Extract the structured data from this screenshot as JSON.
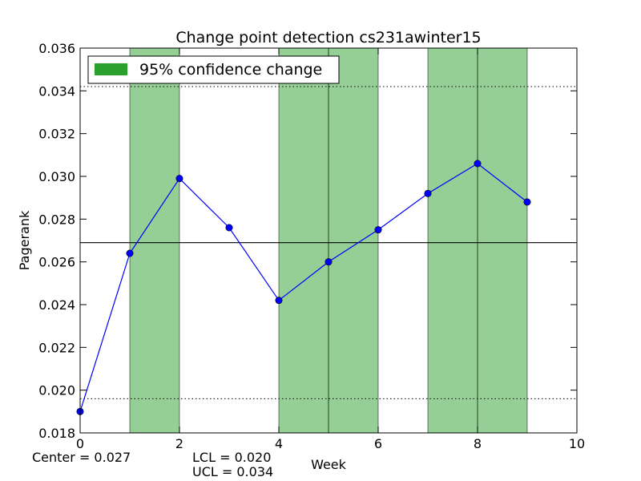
{
  "chart_data": {
    "type": "line",
    "title": "Change point detection cs231awinter15",
    "xlabel": "Week",
    "ylabel": "Pagerank",
    "xlim": [
      0,
      10
    ],
    "ylim": [
      0.018,
      0.036
    ],
    "x_ticks": [
      "0",
      "2",
      "4",
      "6",
      "8",
      "10"
    ],
    "y_ticks": [
      "0.018",
      "0.020",
      "0.022",
      "0.024",
      "0.026",
      "0.028",
      "0.030",
      "0.032",
      "0.034",
      "0.036"
    ],
    "grid": false,
    "series": [
      {
        "x": [
          0,
          1,
          2,
          3,
          4,
          5,
          6,
          7,
          8,
          9
        ],
        "values": [
          0.019,
          0.0264,
          0.0299,
          0.0276,
          0.0242,
          0.026,
          0.0275,
          0.0292,
          0.0306,
          0.0288
        ],
        "color": "#0000ff"
      }
    ],
    "center_line": 0.0269,
    "lcl_line": 0.0196,
    "ucl_line": 0.0342,
    "change_regions": [
      [
        1,
        2
      ],
      [
        4,
        5
      ],
      [
        5,
        6
      ],
      [
        7,
        8
      ],
      [
        8,
        9
      ]
    ],
    "change_region_color": "#2ca02c",
    "legend": {
      "position": "top-left",
      "entries": [
        "95% confidence change"
      ]
    }
  },
  "footer": {
    "center": "Center = 0.027",
    "lcl": "LCL = 0.020",
    "ucl": "UCL = 0.034"
  }
}
